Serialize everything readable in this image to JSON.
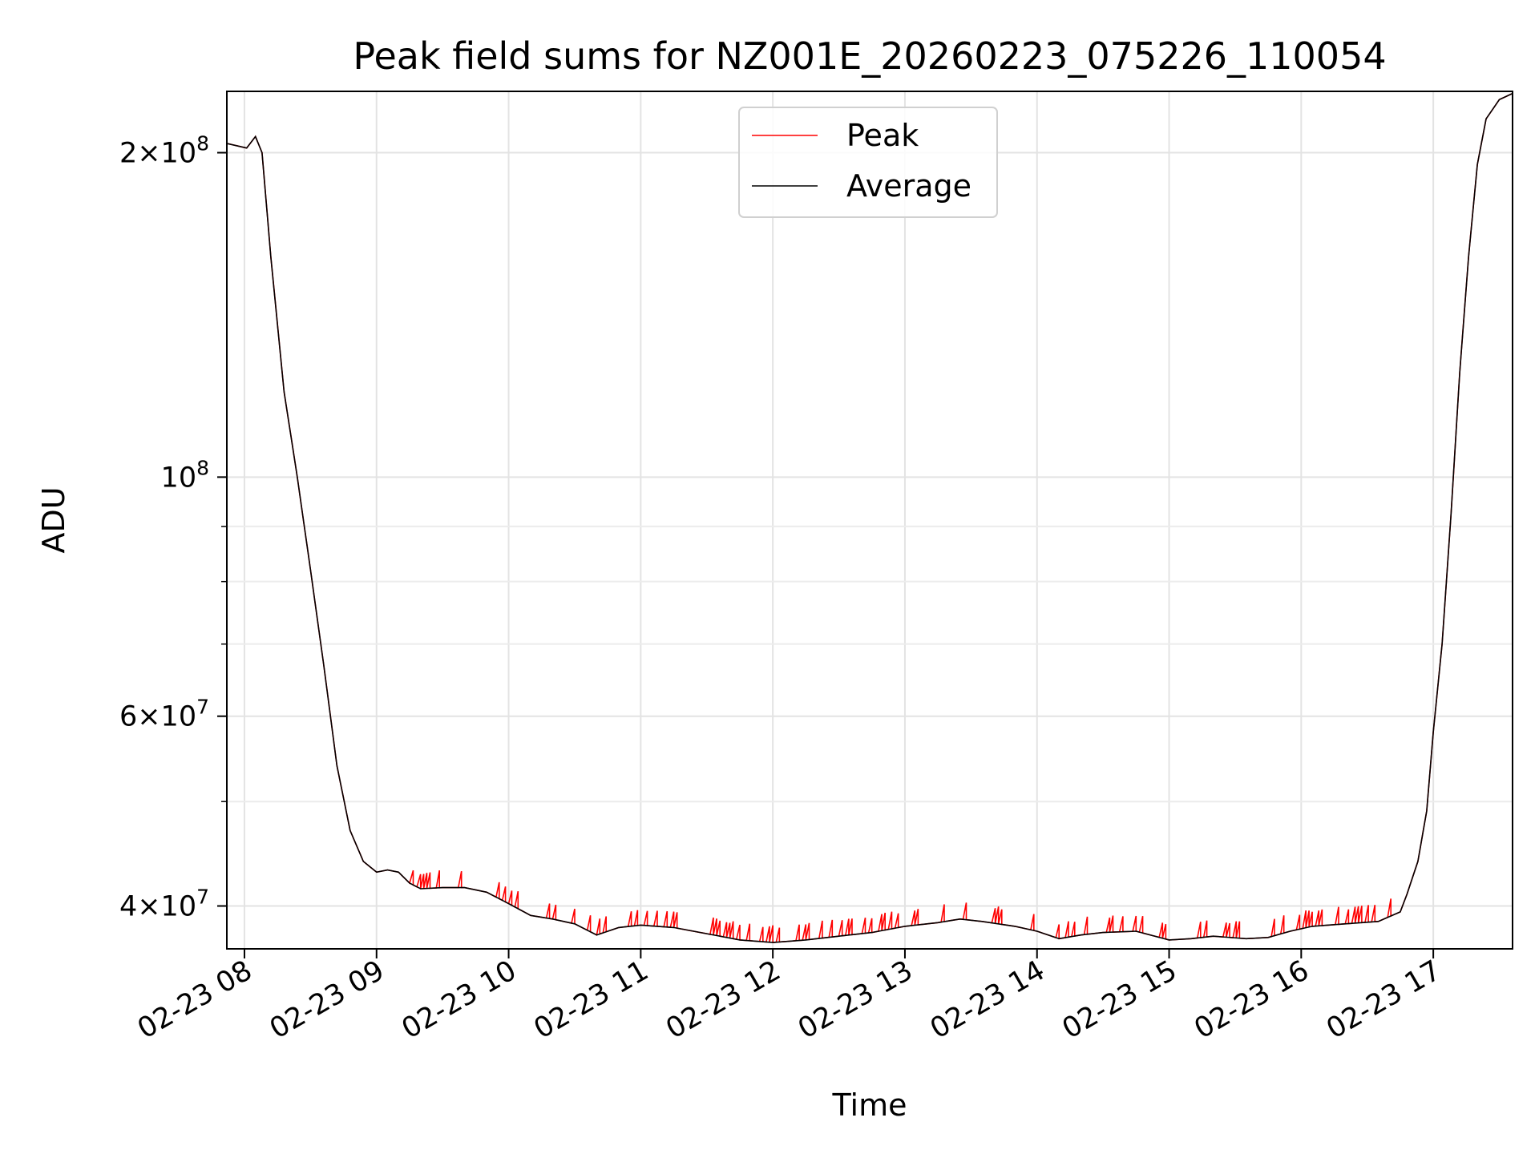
{
  "chart_data": {
    "type": "line",
    "title": "Peak field sums for NZ001E_20260223_075226_110054",
    "xlabel": "Time",
    "ylabel": "ADU",
    "x_unit": "time (2026-02-23, HH:MM)",
    "y_scale": "log",
    "xlim": [
      "07:52",
      "17:36"
    ],
    "ylim": [
      36500000,
      228000000
    ],
    "x_ticks": [
      "02-23 08",
      "02-23 09",
      "02-23 10",
      "02-23 11",
      "02-23 12",
      "02-23 13",
      "02-23 14",
      "02-23 15",
      "02-23 16",
      "02-23 17"
    ],
    "y_major_ticks": [
      {
        "value": 40000000,
        "mantissa": "4",
        "exponent": "7"
      },
      {
        "value": 60000000,
        "mantissa": "6",
        "exponent": "7"
      },
      {
        "value": 100000000,
        "mantissa": "",
        "exponent": "8"
      },
      {
        "value": 200000000,
        "mantissa": "2",
        "exponent": "8"
      }
    ],
    "y_minor_ticks": [
      50000000,
      70000000,
      80000000,
      90000000
    ],
    "grid": true,
    "legend": {
      "position": "top-center"
    },
    "series": [
      {
        "name": "Peak",
        "color": "#ff0000",
        "style": "spiky, slightly above Average in the plateau (up to ~1.5e6 ADU above)",
        "points": [
          [
            "07:52",
            204000000
          ],
          [
            "08:01",
            202000000
          ],
          [
            "08:05",
            207000000
          ],
          [
            "08:08",
            200000000
          ],
          [
            "08:12",
            160000000
          ],
          [
            "08:18",
            120000000
          ],
          [
            "08:24",
            100000000
          ],
          [
            "08:30",
            82000000
          ],
          [
            "08:36",
            67000000
          ],
          [
            "08:42",
            54000000
          ],
          [
            "08:48",
            47000000
          ],
          [
            "08:54",
            44000000
          ],
          [
            "09:00",
            43000000
          ],
          [
            "09:05",
            43200000
          ],
          [
            "09:10",
            43000000
          ],
          [
            "09:15",
            42000000
          ],
          [
            "09:20",
            41500000
          ],
          [
            "09:30",
            41600000
          ],
          [
            "09:40",
            41600000
          ],
          [
            "09:50",
            41200000
          ],
          [
            "10:00",
            40200000
          ],
          [
            "10:10",
            39200000
          ],
          [
            "10:20",
            38900000
          ],
          [
            "10:30",
            38500000
          ],
          [
            "10:40",
            37600000
          ],
          [
            "10:50",
            38200000
          ],
          [
            "11:00",
            38400000
          ],
          [
            "11:15",
            38200000
          ],
          [
            "11:30",
            37700000
          ],
          [
            "11:45",
            37200000
          ],
          [
            "12:00",
            37000000
          ],
          [
            "12:15",
            37200000
          ],
          [
            "12:30",
            37500000
          ],
          [
            "12:45",
            37800000
          ],
          [
            "13:00",
            38300000
          ],
          [
            "13:15",
            38600000
          ],
          [
            "13:25",
            38900000
          ],
          [
            "13:35",
            38700000
          ],
          [
            "13:50",
            38300000
          ],
          [
            "14:00",
            37900000
          ],
          [
            "14:10",
            37300000
          ],
          [
            "14:20",
            37600000
          ],
          [
            "14:30",
            37800000
          ],
          [
            "14:45",
            37900000
          ],
          [
            "15:00",
            37200000
          ],
          [
            "15:10",
            37300000
          ],
          [
            "15:20",
            37500000
          ],
          [
            "15:35",
            37300000
          ],
          [
            "15:45",
            37400000
          ],
          [
            "15:55",
            37900000
          ],
          [
            "16:05",
            38300000
          ],
          [
            "16:20",
            38500000
          ],
          [
            "16:35",
            38700000
          ],
          [
            "16:45",
            39500000
          ],
          [
            "16:48",
            41000000
          ],
          [
            "16:53",
            44000000
          ],
          [
            "16:57",
            49000000
          ],
          [
            "17:00",
            58000000
          ],
          [
            "17:04",
            70000000
          ],
          [
            "17:08",
            92000000
          ],
          [
            "17:12",
            125000000
          ],
          [
            "17:16",
            160000000
          ],
          [
            "17:20",
            195000000
          ],
          [
            "17:24",
            215000000
          ],
          [
            "17:30",
            224000000
          ],
          [
            "17:36",
            227000000
          ]
        ]
      },
      {
        "name": "Average",
        "color": "#000000",
        "points": [
          [
            "07:52",
            204000000
          ],
          [
            "08:01",
            202000000
          ],
          [
            "08:05",
            207000000
          ],
          [
            "08:08",
            200000000
          ],
          [
            "08:12",
            160000000
          ],
          [
            "08:18",
            120000000
          ],
          [
            "08:24",
            100000000
          ],
          [
            "08:30",
            82000000
          ],
          [
            "08:36",
            67000000
          ],
          [
            "08:42",
            54000000
          ],
          [
            "08:48",
            47000000
          ],
          [
            "08:54",
            44000000
          ],
          [
            "09:00",
            43000000
          ],
          [
            "09:05",
            43200000
          ],
          [
            "09:10",
            43000000
          ],
          [
            "09:15",
            42000000
          ],
          [
            "09:20",
            41500000
          ],
          [
            "09:30",
            41600000
          ],
          [
            "09:40",
            41600000
          ],
          [
            "09:50",
            41200000
          ],
          [
            "10:00",
            40200000
          ],
          [
            "10:10",
            39200000
          ],
          [
            "10:20",
            38900000
          ],
          [
            "10:30",
            38500000
          ],
          [
            "10:40",
            37600000
          ],
          [
            "10:50",
            38200000
          ],
          [
            "11:00",
            38400000
          ],
          [
            "11:15",
            38200000
          ],
          [
            "11:30",
            37700000
          ],
          [
            "11:45",
            37200000
          ],
          [
            "12:00",
            37000000
          ],
          [
            "12:15",
            37200000
          ],
          [
            "12:30",
            37500000
          ],
          [
            "12:45",
            37800000
          ],
          [
            "13:00",
            38300000
          ],
          [
            "13:15",
            38600000
          ],
          [
            "13:25",
            38900000
          ],
          [
            "13:35",
            38700000
          ],
          [
            "13:50",
            38300000
          ],
          [
            "14:00",
            37900000
          ],
          [
            "14:10",
            37300000
          ],
          [
            "14:20",
            37600000
          ],
          [
            "14:30",
            37800000
          ],
          [
            "14:45",
            37900000
          ],
          [
            "15:00",
            37200000
          ],
          [
            "15:10",
            37300000
          ],
          [
            "15:20",
            37500000
          ],
          [
            "15:35",
            37300000
          ],
          [
            "15:45",
            37400000
          ],
          [
            "15:55",
            37900000
          ],
          [
            "16:05",
            38300000
          ],
          [
            "16:20",
            38500000
          ],
          [
            "16:35",
            38700000
          ],
          [
            "16:45",
            39500000
          ],
          [
            "16:48",
            41000000
          ],
          [
            "16:53",
            44000000
          ],
          [
            "16:57",
            49000000
          ],
          [
            "17:00",
            58000000
          ],
          [
            "17:04",
            70000000
          ],
          [
            "17:08",
            92000000
          ],
          [
            "17:12",
            125000000
          ],
          [
            "17:16",
            160000000
          ],
          [
            "17:20",
            195000000
          ],
          [
            "17:24",
            215000000
          ],
          [
            "17:30",
            224000000
          ],
          [
            "17:36",
            227000000
          ]
        ]
      }
    ]
  }
}
